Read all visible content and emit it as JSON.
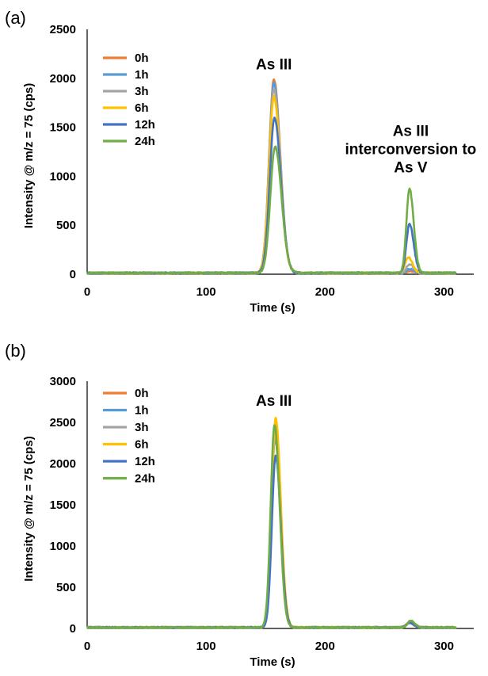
{
  "chart_data": [
    {
      "type": "line",
      "panel_label": "(a)",
      "xlabel": "Time (s)",
      "ylabel": "Intensity @ m/z = 75 (cps)",
      "xlim": [
        0,
        325
      ],
      "ylim": [
        0,
        2500
      ],
      "xticks": [
        0,
        100,
        200,
        300
      ],
      "yticks": [
        0,
        500,
        1000,
        1500,
        2000,
        2500
      ],
      "legend_position": "top-left",
      "annotations": [
        {
          "lines": [
            "As III"
          ],
          "x": 157,
          "y": 2090
        },
        {
          "lines": [
            "As III",
            "interconversion to",
            "As V"
          ],
          "x": 272,
          "y": 1410
        }
      ],
      "series": [
        {
          "name": "0h",
          "color": "#ED7D31",
          "peaks": [
            {
              "x": 157,
              "height": 1980
            },
            {
              "x": 271,
              "height": 20
            }
          ]
        },
        {
          "name": "1h",
          "color": "#5B9BD5",
          "peaks": [
            {
              "x": 157,
              "height": 1940
            },
            {
              "x": 271,
              "height": 40
            }
          ]
        },
        {
          "name": "3h",
          "color": "#A5A5A5",
          "peaks": [
            {
              "x": 157,
              "height": 1880
            },
            {
              "x": 271,
              "height": 90
            }
          ]
        },
        {
          "name": "6h",
          "color": "#FFC000",
          "peaks": [
            {
              "x": 157,
              "height": 1800
            },
            {
              "x": 270,
              "height": 160
            }
          ]
        },
        {
          "name": "12h",
          "color": "#4472C4",
          "peaks": [
            {
              "x": 157.5,
              "height": 1580
            },
            {
              "x": 271,
              "height": 500
            }
          ]
        },
        {
          "name": "24h",
          "color": "#70AD47",
          "peaks": [
            {
              "x": 158,
              "height": 1290
            },
            {
              "x": 271,
              "height": 860
            }
          ]
        }
      ]
    },
    {
      "type": "line",
      "panel_label": "(b)",
      "xlabel": "Time (s)",
      "ylabel": "Intensity @ m/z = 75 (cps)",
      "xlim": [
        0,
        325
      ],
      "ylim": [
        0,
        3000
      ],
      "xticks": [
        0,
        100,
        200,
        300
      ],
      "yticks": [
        0,
        500,
        1000,
        1500,
        2000,
        2500,
        3000
      ],
      "legend_position": "top-left",
      "annotations": [
        {
          "lines": [
            "As III"
          ],
          "x": 157,
          "y": 2700
        }
      ],
      "series": [
        {
          "name": "0h",
          "color": "#ED7D31",
          "peaks": [
            {
              "x": 158,
              "height": 2420
            },
            {
              "x": 271,
              "height": 60
            }
          ]
        },
        {
          "name": "1h",
          "color": "#5B9BD5",
          "peaks": [
            {
              "x": 158,
              "height": 2300
            },
            {
              "x": 271,
              "height": 60
            }
          ]
        },
        {
          "name": "3h",
          "color": "#A5A5A5",
          "peaks": [
            {
              "x": 158,
              "height": 2350
            },
            {
              "x": 271,
              "height": 60
            }
          ]
        },
        {
          "name": "6h",
          "color": "#FFC000",
          "peaks": [
            {
              "x": 158.5,
              "height": 2540
            },
            {
              "x": 271,
              "height": 60
            }
          ]
        },
        {
          "name": "12h",
          "color": "#4472C4",
          "peaks": [
            {
              "x": 158.5,
              "height": 2080
            },
            {
              "x": 271,
              "height": 60
            }
          ]
        },
        {
          "name": "24h",
          "color": "#70AD47",
          "peaks": [
            {
              "x": 157.5,
              "height": 2460
            },
            {
              "x": 272,
              "height": 80
            }
          ]
        }
      ]
    }
  ]
}
